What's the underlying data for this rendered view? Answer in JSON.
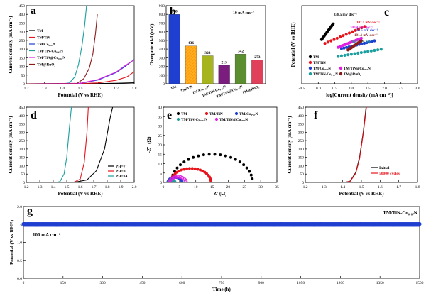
{
  "chart_data": [
    {
      "panel": "a",
      "type": "line",
      "xlabel": "Potential (V vs RHE)",
      "ylabel": "Current density (mA cm⁻²)",
      "xlim": [
        1.2,
        1.8
      ],
      "ylim": [
        0,
        450
      ],
      "xticks": [
        "1.2",
        "1.3",
        "1.4",
        "1.5",
        "1.6",
        "1.7",
        "1.8"
      ],
      "yticks": [
        "0",
        "50",
        "100",
        "150",
        "200",
        "250",
        "300",
        "350",
        "400",
        "450"
      ],
      "legend_position": "top-left",
      "series": [
        {
          "name": "TM",
          "color": "#000000",
          "x": [
            1.2,
            1.4,
            1.55,
            1.7,
            1.8
          ],
          "y": [
            0,
            0,
            1,
            3,
            6
          ]
        },
        {
          "name": "TM/TiN",
          "color": "#e8141c",
          "x": [
            1.2,
            1.45,
            1.6,
            1.7,
            1.76,
            1.8
          ],
          "y": [
            0,
            0,
            5,
            20,
            40,
            70
          ]
        },
        {
          "name": "TM/Co₀.₆₇N",
          "color": "#1f3fd0",
          "x": [
            1.2,
            1.5,
            1.6,
            1.7,
            1.75,
            1.8
          ],
          "y": [
            0,
            2,
            22,
            65,
            100,
            140
          ]
        },
        {
          "name": "TM/TiN-Co₀.₆₇N",
          "color": "#1a9e9e",
          "x": [
            1.2,
            1.4,
            1.44,
            1.47,
            1.49,
            1.51,
            1.525,
            1.535
          ],
          "y": [
            0,
            0,
            5,
            40,
            110,
            220,
            340,
            450
          ]
        },
        {
          "name": "TM/TiN@Co₀.₆₇N",
          "color": "#e020e0",
          "x": [
            1.2,
            1.5,
            1.6,
            1.7,
            1.75,
            1.8
          ],
          "y": [
            0,
            3,
            25,
            68,
            105,
            138
          ]
        },
        {
          "name": "TM@RuO₂",
          "color": "#8b1a1a",
          "x": [
            1.2,
            1.48,
            1.52,
            1.55,
            1.57,
            1.585,
            1.595
          ],
          "y": [
            0,
            0,
            30,
            90,
            170,
            290,
            400
          ]
        }
      ]
    },
    {
      "panel": "b",
      "type": "bar",
      "ylabel": "Overpotential (mV)",
      "ylim": [
        0,
        900
      ],
      "yticks": [
        "0",
        "100",
        "200",
        "300",
        "400",
        "500",
        "600",
        "700",
        "800",
        "900"
      ],
      "annotation": "10 mA cm⁻²",
      "categories": [
        "TM",
        "TM/TiN",
        "TM/Co₀.₆₇N",
        "TM/TiN-Co₀.₆₇N",
        "TM/TiN@Co₀.₆₇N",
        "TM@RuO₂"
      ],
      "values": [
        800,
        436,
        323,
        213,
        342,
        273
      ],
      "value_labels": [
        "800",
        "436",
        "323",
        "213",
        "342",
        "273"
      ],
      "colors": [
        "#1f3fd0",
        "#ffa500",
        "#a6b41e",
        "#7a1d7f",
        "#5b8e2e",
        "#e0405a"
      ]
    },
    {
      "panel": "c",
      "type": "scatter",
      "xlabel": "log[Current density (mA cm⁻²)]",
      "ylabel": "Potential (V vs RHE)",
      "xlim": [
        -0.5,
        3.0
      ],
      "ylim": [
        1.3,
        1.9
      ],
      "xticks": [
        "-0.5",
        "0.0",
        "0.5",
        "1.0",
        "1.5",
        "2.0",
        "2.5",
        "3.0"
      ],
      "legend_position": "bottom-left",
      "series": [
        {
          "name": "TM",
          "color": "#000000",
          "slope_label": "338.5 mV dec⁻¹",
          "x0": 0.1,
          "x1": 0.45,
          "y0": 1.64,
          "y1": 1.76
        },
        {
          "name": "TM/TiN",
          "color": "#e8141c",
          "slope_label": "107.5 mV dec⁻¹",
          "x0": 0.2,
          "x1": 1.4,
          "y0": 1.61,
          "y1": 1.74
        },
        {
          "name": "TM/Co₀.₆₇N",
          "color": "#1f3fd0",
          "slope_label": "56.5 mV dec⁻¹",
          "x0": 0.7,
          "x1": 1.7,
          "y0": 1.57,
          "y1": 1.63
        },
        {
          "name": "TM/TiN@Co₀.₆₇N",
          "color": "#e020e0",
          "slope_label": "100.4 mV dec⁻¹",
          "x0": 0.6,
          "x1": 1.3,
          "y0": 1.58,
          "y1": 1.65
        },
        {
          "name": "TM/TiN-Co₀.₆₇N",
          "color": "#1a9e9e",
          "slope_label": "42.5 mV dec⁻¹",
          "x0": 0.6,
          "x1": 1.9,
          "y0": 1.51,
          "y1": 1.565
        },
        {
          "name": "TM@RuO₂",
          "color": "#8b1a1a",
          "slope_label": "181.1 mV dec⁻¹",
          "x0": 0.9,
          "x1": 1.3,
          "y0": 1.56,
          "y1": 1.63
        }
      ]
    },
    {
      "panel": "d",
      "type": "line",
      "xlabel": "Potential (V vs RHE)",
      "ylabel": "Current density (mA cm⁻²)",
      "xlim": [
        1.2,
        2.0
      ],
      "ylim": [
        0,
        450
      ],
      "xticks": [
        "1.2",
        "1.3",
        "1.4",
        "1.5",
        "1.6",
        "1.7",
        "1.8",
        "1.9",
        "2.0"
      ],
      "yticks": [
        "0",
        "50",
        "100",
        "150",
        "200",
        "250",
        "300",
        "350",
        "400",
        "450"
      ],
      "legend_position": "bottom-right",
      "series": [
        {
          "name": "PH=7",
          "color": "#000000",
          "x": [
            1.2,
            1.55,
            1.65,
            1.72,
            1.78,
            1.82,
            1.84
          ],
          "y": [
            0,
            0,
            15,
            70,
            200,
            380,
            450
          ]
        },
        {
          "name": "PH=0",
          "color": "#e8141c",
          "x": [
            1.2,
            1.55,
            1.6,
            1.63,
            1.65,
            1.66
          ],
          "y": [
            0,
            0,
            20,
            120,
            300,
            450
          ]
        },
        {
          "name": "PH=14",
          "color": "#1a9e9e",
          "x": [
            1.2,
            1.42,
            1.45,
            1.48,
            1.5,
            1.52,
            1.535
          ],
          "y": [
            0,
            0,
            5,
            50,
            150,
            330,
            450
          ]
        }
      ]
    },
    {
      "panel": "e",
      "type": "scatter",
      "xlabel": "Z' (Ω)",
      "ylabel": "-Z'' (Ω)",
      "xlim": [
        0,
        35
      ],
      "ylim": [
        0,
        40
      ],
      "xticks": [
        "0",
        "5",
        "10",
        "15",
        "20",
        "25",
        "30",
        "35"
      ],
      "yticks": [
        "0",
        "5",
        "10",
        "15",
        "20",
        "25",
        "30",
        "35",
        "40"
      ],
      "legend_position": "top",
      "series": [
        {
          "name": "TM",
          "color": "#000000",
          "center": 15,
          "radius": 12.5
        },
        {
          "name": "TM/TiN",
          "color": "#e8141c",
          "center": 8.5,
          "radius": 6.2
        },
        {
          "name": "TM/Co₀.₆₇N",
          "color": "#1f3fd0",
          "center": 3.6,
          "radius": 2.2
        },
        {
          "name": "TM/TiN-Co₀.₆₇N",
          "color": "#1a9e9e",
          "center": 2.6,
          "radius": 1.0
        },
        {
          "name": "TM/TiN@Co₀.₆₇N",
          "color": "#e020e0",
          "center": 4.5,
          "radius": 2.5
        }
      ]
    },
    {
      "panel": "f",
      "type": "line",
      "xlabel": "Potential (V vs RHE)",
      "ylabel": "Current density (mA cm⁻²)",
      "xlim": [
        1.2,
        1.8
      ],
      "ylim": [
        0,
        450
      ],
      "xticks": [
        "1.2",
        "1.3",
        "1.4",
        "1.5",
        "1.6",
        "1.7",
        "1.8"
      ],
      "yticks": [
        "0",
        "50",
        "100",
        "150",
        "200",
        "250",
        "300",
        "350",
        "400",
        "450"
      ],
      "legend_position": "bottom-right",
      "series": [
        {
          "name": "Initial",
          "color": "#000000",
          "x": [
            1.2,
            1.41,
            1.44,
            1.47,
            1.49,
            1.51,
            1.525
          ],
          "y": [
            0,
            0,
            8,
            60,
            150,
            300,
            450
          ]
        },
        {
          "name": "50000 cycles",
          "color": "#e8141c",
          "x": [
            1.2,
            1.41,
            1.44,
            1.47,
            1.49,
            1.51,
            1.527
          ],
          "y": [
            0,
            0,
            6,
            55,
            140,
            290,
            450
          ]
        }
      ]
    },
    {
      "panel": "g",
      "type": "scatter",
      "xlabel": "Time (h)",
      "ylabel": "Potential (V vs RHE)",
      "xlim": [
        0,
        1500
      ],
      "ylim": [
        0.0,
        2.0
      ],
      "xticks": [
        "0",
        "150",
        "300",
        "450",
        "600",
        "750",
        "900",
        "1050",
        "1200",
        "1350",
        "1500"
      ],
      "yticks": [
        "0.0",
        "0.5",
        "1.0",
        "1.5",
        "2.0"
      ],
      "annotation": "100 mA cm⁻²",
      "series": [
        {
          "name": "TM/TiN-Co₀.₆₇N",
          "color": "#1f3fd0",
          "x": [
            0,
            1500
          ],
          "y": [
            1.5,
            1.5
          ]
        }
      ]
    }
  ]
}
